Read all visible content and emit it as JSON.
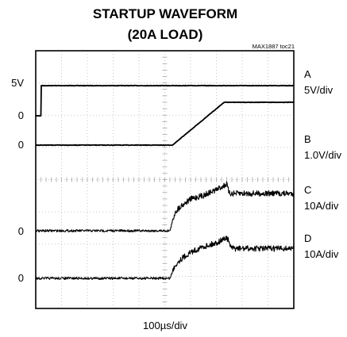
{
  "chart_data": {
    "type": "line",
    "title": "STARTUP WAVEFORM",
    "subtitle": "(20A LOAD)",
    "figure_id": "MAX1887 toc21",
    "xlabel": "100µs/div",
    "x_divisions": 10,
    "y_divisions": 8,
    "grid": true,
    "levels": [
      {
        "label": "5V",
        "trace": "A"
      },
      {
        "label": "0",
        "trace": "A"
      },
      {
        "label": "0",
        "trace": "B"
      },
      {
        "label": "0",
        "trace": "C"
      },
      {
        "label": "0",
        "trace": "D"
      }
    ],
    "series": [
      {
        "name": "A",
        "scale": "5V/div",
        "x": [
          0,
          0.2,
          0.21,
          10
        ],
        "y": [
          0,
          0,
          5,
          5
        ]
      },
      {
        "name": "B",
        "scale": "1.0V/div",
        "x": [
          0,
          5.3,
          7.3,
          10
        ],
        "y": [
          0,
          0,
          1.5,
          1.5
        ]
      },
      {
        "name": "C",
        "scale": "10A/div",
        "x": [
          0,
          5.2,
          5.4,
          5.6,
          6.0,
          6.5,
          7.0,
          7.4,
          7.5,
          10
        ],
        "y": [
          0,
          0,
          10,
          13,
          17,
          19,
          22,
          25,
          20,
          20
        ]
      },
      {
        "name": "D",
        "scale": "10A/div",
        "x": [
          0,
          5.2,
          5.4,
          5.6,
          6.0,
          6.5,
          7.0,
          7.4,
          7.6,
          10
        ],
        "y": [
          0,
          0,
          7,
          10,
          14,
          17,
          19,
          22,
          16,
          16
        ]
      }
    ]
  }
}
